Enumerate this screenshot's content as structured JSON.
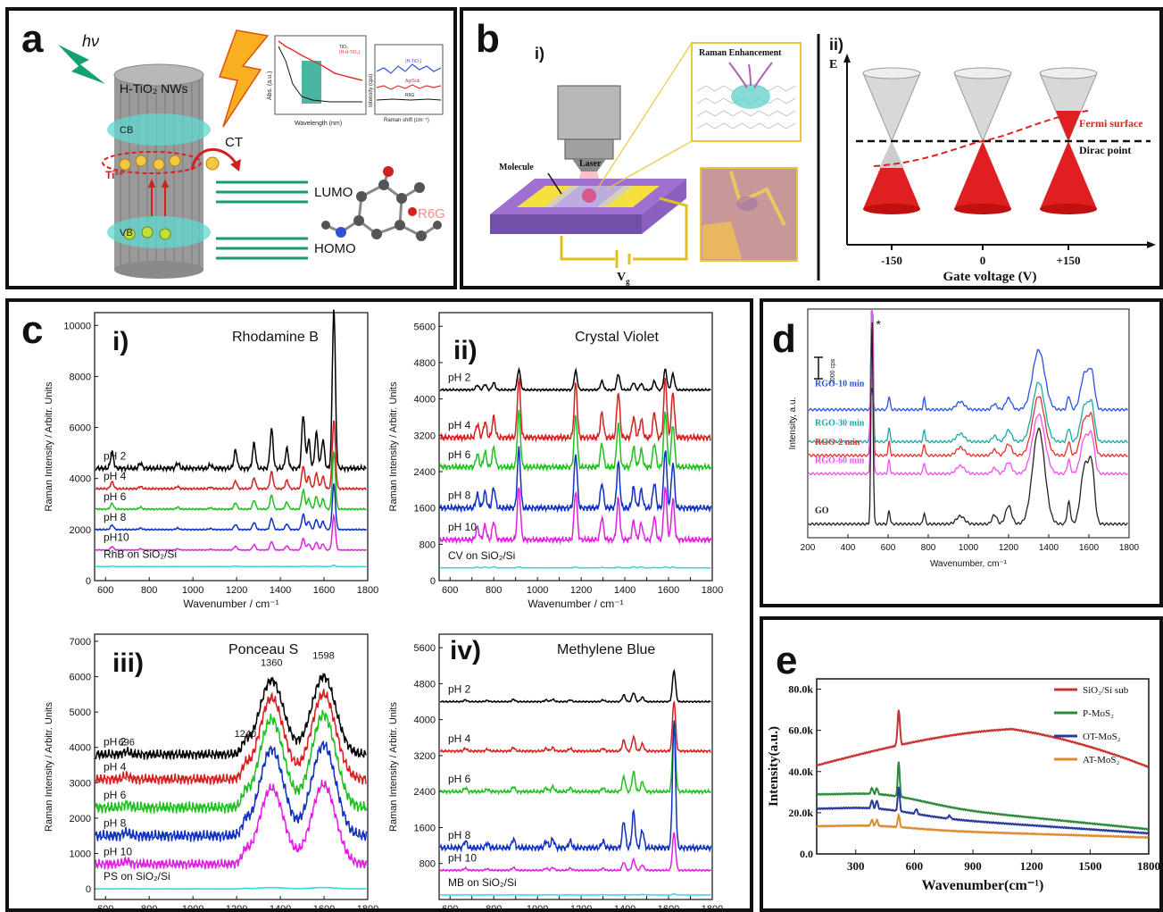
{
  "panels": {
    "a": {
      "label": "a"
    },
    "b": {
      "label": "b"
    },
    "c": {
      "label": "c"
    },
    "d": {
      "label": "d"
    },
    "e": {
      "label": "e"
    }
  },
  "panel_a": {
    "hv": "hν",
    "nanowire_label": "H-TiO₂ NWs",
    "cb": "CB",
    "vb": "VB",
    "ti": "Ti³⁺",
    "ct": "CT",
    "lumo": "LUMO",
    "homo": "HOMO",
    "molecule": "R6G",
    "electron": "e⁻",
    "hole": "h⁺",
    "inset1": {
      "xlabel": "Wavelength (nm)",
      "ylabel": "Abs. (a.u.)",
      "legend": [
        "TiO₂",
        "(H-rt-TiO₂)"
      ]
    },
    "inset2": {
      "xlabel": "Raman shift (cm⁻¹)",
      "ylabel": "Intensity (cps)",
      "legend": [
        "(H-TiO₂)",
        "Ag/Sub",
        "R6G"
      ]
    }
  },
  "panel_b": {
    "i_label": "i)",
    "ii_label": "ii)",
    "raman_enhancement": "Raman Enhancement",
    "laser": "Laser",
    "molecule": "Molecule",
    "vg": "V",
    "vg_sub": "g",
    "e_axis": "E",
    "fermi": "Fermi surface",
    "dirac": "Dirac point",
    "xlabel": "Gate voltage (V)",
    "ticks": [
      "-150",
      "0",
      "+150"
    ]
  },
  "chart_data": [
    {
      "id": "c-i",
      "type": "line",
      "panel_tag": "i)",
      "title": "Rhodamine B",
      "xlabel": "Wavenumber / cm⁻¹",
      "ylabel": "Raman Intensity / Arbitr. Units",
      "xlim": [
        550,
        1800
      ],
      "ylim": [
        0,
        10500
      ],
      "xticks": [
        600,
        800,
        1000,
        1200,
        1400,
        1600,
        1800
      ],
      "yticks": [
        0,
        2000,
        4000,
        6000,
        8000,
        10000
      ],
      "peaks": [
        [
          630,
          0.45
        ],
        [
          760,
          0.15
        ],
        [
          930,
          0.15
        ],
        [
          1080,
          0.1
        ],
        [
          1195,
          0.5
        ],
        [
          1280,
          0.7
        ],
        [
          1360,
          1.1
        ],
        [
          1430,
          0.55
        ],
        [
          1505,
          1.5
        ],
        [
          1530,
          0.8
        ],
        [
          1565,
          1.0
        ],
        [
          1595,
          0.8
        ],
        [
          1645,
          4.5
        ]
      ],
      "series": [
        {
          "label": "pH 2",
          "color": "#000000",
          "baseline": 4400,
          "scale": 1400
        },
        {
          "label": "pH 4",
          "color": "#d42020",
          "baseline": 3600,
          "scale": 600
        },
        {
          "label": "pH 6",
          "color": "#20c020",
          "baseline": 2800,
          "scale": 500
        },
        {
          "label": "pH 8",
          "color": "#1030c0",
          "baseline": 2000,
          "scale": 400
        },
        {
          "label": "pH10",
          "color": "#e020e0",
          "baseline": 1200,
          "scale": 300
        },
        {
          "label": "RhB on SiO₂/Si",
          "color": "#30d8e0",
          "baseline": 550,
          "scale": 40
        }
      ]
    },
    {
      "id": "c-ii",
      "type": "line",
      "panel_tag": "ii)",
      "title": "Crystal Violet",
      "xlabel": "Wavenumber / cm⁻¹",
      "ylabel": "Raman Intensity / Arbitr. Units",
      "xlim": [
        550,
        1800
      ],
      "ylim": [
        0,
        5900
      ],
      "xticks": [
        600,
        700,
        800,
        900,
        1000,
        1100,
        1200,
        1300,
        1400,
        1500,
        1600,
        1700,
        1800
      ],
      "yticks": [
        0,
        800,
        1600,
        2400,
        3200,
        4000,
        4800,
        5600
      ],
      "peaks": [
        [
          725,
          0.3
        ],
        [
          760,
          0.35
        ],
        [
          800,
          0.45
        ],
        [
          915,
          1.3
        ],
        [
          1175,
          1.2
        ],
        [
          1295,
          0.55
        ],
        [
          1370,
          1.0
        ],
        [
          1440,
          0.45
        ],
        [
          1475,
          0.4
        ],
        [
          1535,
          0.55
        ],
        [
          1585,
          1.3
        ],
        [
          1620,
          1.0
        ]
      ],
      "series": [
        {
          "label": "pH 2",
          "color": "#000000",
          "baseline": 4200,
          "scale": 350
        },
        {
          "label": "pH 4",
          "color": "#d42020",
          "baseline": 3150,
          "scale": 1000
        },
        {
          "label": "pH 6",
          "color": "#20c020",
          "baseline": 2500,
          "scale": 950
        },
        {
          "label": "pH 8",
          "color": "#1030c0",
          "baseline": 1600,
          "scale": 1000
        },
        {
          "label": "pH 10",
          "color": "#e020e0",
          "baseline": 900,
          "scale": 900
        },
        {
          "label": "CV on SiO₂/Si",
          "color": "#30d8e0",
          "baseline": 280,
          "scale": 60
        }
      ]
    },
    {
      "id": "c-iii",
      "type": "line",
      "panel_tag": "iii)",
      "title": "Ponceau S",
      "xlabel": "Wavenumber / cm⁻¹",
      "ylabel": "Raman Intensity / Arbitr. Units",
      "xlim": [
        550,
        1800
      ],
      "ylim": [
        -300,
        7200
      ],
      "xticks": [
        600,
        800,
        1000,
        1200,
        1400,
        1600,
        1800
      ],
      "yticks": [
        0,
        1000,
        2000,
        3000,
        4000,
        5000,
        6000,
        7000
      ],
      "broad": true,
      "peaks": [
        [
          696,
          0.04
        ],
        [
          1240,
          0.12
        ],
        [
          1360,
          1.0
        ],
        [
          1598,
          1.05
        ]
      ],
      "annotations": [
        {
          "text": "696",
          "x": 696,
          "y": 4050
        },
        {
          "text": "1240",
          "x": 1240,
          "y": 4300
        },
        {
          "text": "1360",
          "x": 1360,
          "y": 6300
        },
        {
          "text": "1598",
          "x": 1598,
          "y": 6500
        }
      ],
      "series": [
        {
          "label": "pH 2",
          "color": "#000000",
          "baseline": 3800,
          "scale": 2100
        },
        {
          "label": "pH 4",
          "color": "#d42020",
          "baseline": 3100,
          "scale": 2300
        },
        {
          "label": "pH 6",
          "color": "#20c020",
          "baseline": 2300,
          "scale": 2500
        },
        {
          "label": "pH 8",
          "color": "#1030c0",
          "baseline": 1500,
          "scale": 2450
        },
        {
          "label": "pH 10",
          "color": "#e020e0",
          "baseline": 700,
          "scale": 2150
        },
        {
          "label": "PS on SiO₂/Si",
          "color": "#30d8e0",
          "baseline": 0,
          "scale": 120
        }
      ]
    },
    {
      "id": "c-iv",
      "type": "line",
      "panel_tag": "iv)",
      "title": "Methylene Blue",
      "xlabel": "Wavenumber / cm⁻¹",
      "ylabel": "Raman Intensity / Arbitr. Units",
      "xlim": [
        550,
        1800
      ],
      "ylim": [
        0,
        5900
      ],
      "xticks": [
        600,
        700,
        800,
        900,
        1000,
        1100,
        1200,
        1300,
        1400,
        1500,
        1600,
        1700,
        1800
      ],
      "yticks": [
        800,
        1600,
        2400,
        3200,
        4000,
        4800,
        5600
      ],
      "peaks": [
        [
          670,
          0.15
        ],
        [
          770,
          0.1
        ],
        [
          890,
          0.2
        ],
        [
          1040,
          0.15
        ],
        [
          1070,
          0.2
        ],
        [
          1150,
          0.15
        ],
        [
          1300,
          0.15
        ],
        [
          1395,
          0.6
        ],
        [
          1440,
          0.8
        ],
        [
          1480,
          0.4
        ],
        [
          1625,
          2.8
        ]
      ],
      "series": [
        {
          "label": "pH 2",
          "color": "#000000",
          "baseline": 4400,
          "scale": 250
        },
        {
          "label": "pH 4",
          "color": "#d42020",
          "baseline": 3300,
          "scale": 400
        },
        {
          "label": "pH 6",
          "color": "#20c020",
          "baseline": 2400,
          "scale": 550
        },
        {
          "label": "pH 8",
          "color": "#1030c0",
          "baseline": 1150,
          "scale": 1000
        },
        {
          "label": "pH 10",
          "color": "#e020e0",
          "baseline": 650,
          "scale": 300
        },
        {
          "label": "MB on SiO₂/Si",
          "color": "#30d8e0",
          "baseline": 100,
          "scale": 30
        }
      ]
    },
    {
      "id": "d",
      "type": "line",
      "title": "",
      "xlabel": "Wavenumber, cm⁻¹",
      "ylabel": "Intensity, a.u.",
      "xlim": [
        200,
        1800
      ],
      "ylim": [
        0,
        10
      ],
      "xticks": [
        200,
        400,
        600,
        800,
        1000,
        1200,
        1400,
        1600,
        1800
      ],
      "scalebar": "2000 cps",
      "asterisk": "*",
      "series": [
        {
          "label": "RGO-10 min",
          "color": "#2a50e8",
          "baseline": 5.6
        },
        {
          "label": "RGO-30 min",
          "color": "#1aa8a8",
          "baseline": 4.2
        },
        {
          "label": "RGO-2 min",
          "color": "#e83030",
          "baseline": 3.6
        },
        {
          "label": "RGO-60 min",
          "color": "#f050f0",
          "baseline": 2.8
        },
        {
          "label": "GO",
          "color": "#222222",
          "baseline": 0.6
        }
      ]
    },
    {
      "id": "e",
      "type": "line",
      "title": "",
      "xlabel": "Wavenumber(cm⁻¹)",
      "ylabel": "Intensity(a.u.)",
      "xlim": [
        100,
        1800
      ],
      "ylim": [
        0,
        85000
      ],
      "xticks": [
        300,
        600,
        900,
        1200,
        1500,
        1800
      ],
      "yticks": [
        0,
        20000,
        40000,
        60000,
        80000
      ],
      "yticklabels": [
        "0.0",
        "20.0k",
        "40.0k",
        "60.0k",
        "80.0k"
      ],
      "series": [
        {
          "label": "SiO₂/Si sub",
          "color": "#c83232"
        },
        {
          "label": "P-MoS₂",
          "color": "#2a8a3a"
        },
        {
          "label": "OT-MoS₂",
          "color": "#2a3a9a"
        },
        {
          "label": "AT-MoS₂",
          "color": "#e08a30"
        }
      ]
    }
  ]
}
